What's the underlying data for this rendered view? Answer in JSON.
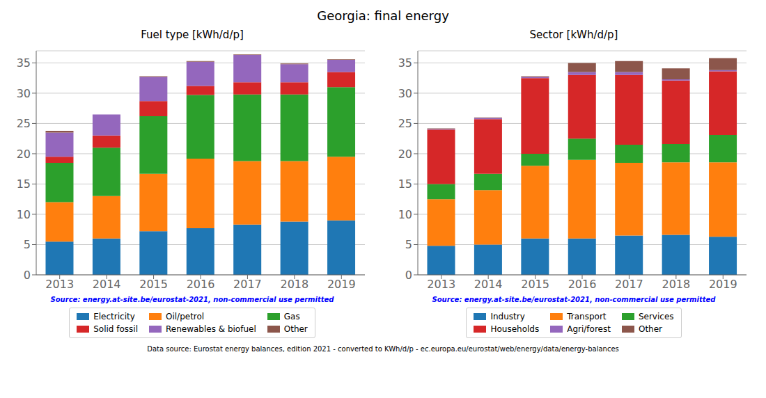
{
  "title": "Georgia: final energy",
  "annotations": [
    "Data source: Eurostat energy balances, edition 2021 - converted to KWh/d/p - ec.europa.eu/eurostat/web/energy/data/energy-balances"
  ],
  "chart_data": [
    {
      "type": "bar",
      "title": "Fuel type [kWh/d/p]",
      "categories": [
        "2013",
        "2014",
        "2015",
        "2016",
        "2017",
        "2018",
        "2019"
      ],
      "series": [
        {
          "name": "Electricity",
          "color": "#1f77b4",
          "values": [
            5.5,
            6.0,
            7.2,
            7.7,
            8.3,
            8.8,
            9.0
          ]
        },
        {
          "name": "Oil/petrol",
          "color": "#ff7f0e",
          "values": [
            6.5,
            7.0,
            9.5,
            11.5,
            10.5,
            10.0,
            10.5
          ]
        },
        {
          "name": "Gas",
          "color": "#2ca02c",
          "values": [
            6.5,
            8.0,
            9.5,
            10.5,
            11.0,
            11.0,
            11.5
          ]
        },
        {
          "name": "Solid fossil",
          "color": "#d62728",
          "values": [
            1.0,
            2.0,
            2.5,
            1.5,
            2.0,
            2.0,
            2.5
          ]
        },
        {
          "name": "Renewables & biofuel",
          "color": "#9467bd",
          "values": [
            4.0,
            3.5,
            4.0,
            4.0,
            4.5,
            3.0,
            2.0
          ]
        },
        {
          "name": "Other",
          "color": "#8c564b",
          "values": [
            0.3,
            0.0,
            0.1,
            0.1,
            0.1,
            0.1,
            0.1
          ]
        }
      ],
      "ylim": [
        0,
        37
      ],
      "yticks": [
        0,
        5,
        10,
        15,
        20,
        25,
        30,
        35
      ],
      "grid": true,
      "stacked": true,
      "legend": "bottom",
      "annotations": [
        "Source: energy.at-site.be/eurostat-2021, non-commercial use permitted"
      ]
    },
    {
      "type": "bar",
      "title": "Sector [kWh/d/p]",
      "categories": [
        "2013",
        "2014",
        "2015",
        "2016",
        "2017",
        "2018",
        "2019"
      ],
      "series": [
        {
          "name": "Industry",
          "color": "#1f77b4",
          "values": [
            4.8,
            5.0,
            6.0,
            6.0,
            6.5,
            6.6,
            6.3
          ]
        },
        {
          "name": "Transport",
          "color": "#ff7f0e",
          "values": [
            7.7,
            9.0,
            12.0,
            13.0,
            12.0,
            12.0,
            12.3
          ]
        },
        {
          "name": "Services",
          "color": "#2ca02c",
          "values": [
            2.5,
            2.7,
            2.0,
            3.5,
            3.0,
            3.0,
            4.5
          ]
        },
        {
          "name": "Households",
          "color": "#d62728",
          "values": [
            9.0,
            9.0,
            12.5,
            10.5,
            11.5,
            10.5,
            10.5
          ]
        },
        {
          "name": "Agri/forest",
          "color": "#9467bd",
          "values": [
            0.1,
            0.2,
            0.2,
            0.5,
            0.5,
            0.2,
            0.2
          ]
        },
        {
          "name": "Other",
          "color": "#8c564b",
          "values": [
            0.1,
            0.1,
            0.1,
            1.5,
            1.8,
            1.8,
            2.0
          ]
        }
      ],
      "ylim": [
        0,
        37
      ],
      "yticks": [
        0,
        5,
        10,
        15,
        20,
        25,
        30,
        35
      ],
      "grid": true,
      "stacked": true,
      "legend": "bottom",
      "annotations": [
        "Source: energy.at-site.be/eurostat-2021, non-commercial use permitted"
      ]
    }
  ]
}
